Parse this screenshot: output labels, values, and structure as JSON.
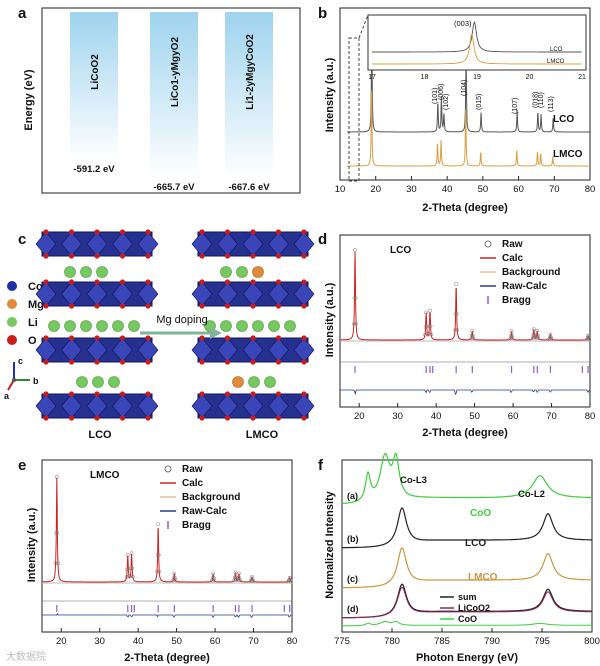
{
  "panel_labels": [
    "a",
    "b",
    "c",
    "d",
    "e",
    "f"
  ],
  "watermark": "大数据院",
  "chart_data": [
    {
      "id": "a",
      "type": "bar",
      "ylabel": "Energy (eV)",
      "categories": [
        "LiCoO2",
        "LiCo1-yMgyO2",
        "Li1-2yMgyCoO2"
      ],
      "values": [
        -591.2,
        -665.7,
        -667.6
      ],
      "value_labels": [
        "-591.2 eV",
        "-665.7 eV",
        "-667.6 eV"
      ],
      "ylim": [
        -700,
        -560
      ],
      "colors": [
        "#9fd3ee",
        "#ffffff"
      ]
    },
    {
      "id": "b",
      "type": "line",
      "title": "",
      "xlabel": "2-Theta (degree)",
      "ylabel": "Intensity (a.u.)",
      "xlim": [
        10,
        80
      ],
      "xticks": [
        10,
        20,
        30,
        40,
        50,
        60,
        70,
        80
      ],
      "series": [
        {
          "name": "LCO",
          "color": "#555555",
          "peaks": [
            [
              18.9,
              1.0
            ],
            [
              37.4,
              0.3
            ],
            [
              38.4,
              0.35
            ],
            [
              39.1,
              0.18
            ],
            [
              45.3,
              0.75
            ],
            [
              49.5,
              0.2
            ],
            [
              59.6,
              0.22
            ],
            [
              65.4,
              0.2
            ],
            [
              66.3,
              0.18
            ],
            [
              69.7,
              0.14
            ]
          ]
        },
        {
          "name": "LMCO",
          "color": "#d9a040",
          "peaks": [
            [
              18.85,
              1.0
            ],
            [
              37.3,
              0.28
            ],
            [
              38.3,
              0.33
            ],
            [
              45.2,
              0.7
            ],
            [
              49.4,
              0.18
            ],
            [
              59.5,
              0.2
            ],
            [
              65.3,
              0.18
            ],
            [
              66.2,
              0.16
            ],
            [
              69.6,
              0.12
            ]
          ]
        }
      ],
      "peak_labels": [
        "(101)",
        "(006)",
        "(102)",
        "(104)",
        "(015)",
        "(107)",
        "(018)",
        "(110)",
        "(113)"
      ],
      "series_labels": [
        "LCO",
        "LMCO"
      ],
      "inset": {
        "xlim": [
          17,
          21
        ],
        "xticks": [
          "17",
          "18",
          "19",
          "20",
          "21"
        ],
        "peak_label": "(003)",
        "series_labels": [
          "LCO",
          "LMCO"
        ],
        "peak_positions": {
          "LCO": 18.95,
          "LMCO": 18.9
        }
      }
    },
    {
      "id": "c",
      "type": "diagram",
      "legend": [
        {
          "name": "Co",
          "color": "#1f2fa8"
        },
        {
          "name": "Mg",
          "color": "#e08a3a"
        },
        {
          "name": "Li",
          "color": "#77c860"
        },
        {
          "name": "O",
          "color": "#cc1b1b"
        }
      ],
      "arrow_label": "Mg doping",
      "structure_labels": [
        "LCO",
        "LMCO"
      ],
      "axes_labels": [
        "c",
        "b",
        "a"
      ]
    },
    {
      "id": "d",
      "type": "line",
      "title": "LCO",
      "xlabel": "2-Theta (degree)",
      "ylabel": "Intensity (a.u.)",
      "xlim": [
        15,
        80
      ],
      "xticks": [
        20,
        30,
        40,
        50,
        60,
        70,
        80
      ],
      "legend": [
        "Raw",
        "Calc",
        "Background",
        "Raw-Calc",
        "Bragg"
      ],
      "peaks": [
        [
          18.9,
          1.0
        ],
        [
          37.4,
          0.3
        ],
        [
          38.4,
          0.32
        ],
        [
          45.2,
          0.62
        ],
        [
          49.4,
          0.1
        ],
        [
          59.6,
          0.1
        ],
        [
          65.4,
          0.12
        ],
        [
          66.3,
          0.1
        ],
        [
          69.7,
          0.06
        ],
        [
          79.5,
          0.05
        ]
      ],
      "bragg": [
        18.9,
        37.4,
        38.4,
        39.1,
        45.2,
        49.4,
        59.6,
        65.4,
        66.3,
        69.7,
        78.0,
        79.5
      ]
    },
    {
      "id": "e",
      "type": "line",
      "title": "LMCO",
      "xlabel": "2-Theta (degree)",
      "ylabel": "Intensity (a.u.)",
      "xlim": [
        15,
        80
      ],
      "xticks": [
        20,
        30,
        40,
        50,
        60,
        70,
        80
      ],
      "legend": [
        "Raw",
        "Calc",
        "Background",
        "Raw-Calc",
        "Bragg"
      ],
      "peaks": [
        [
          18.85,
          1.0
        ],
        [
          37.3,
          0.25
        ],
        [
          38.3,
          0.27
        ],
        [
          45.2,
          0.55
        ],
        [
          49.4,
          0.08
        ],
        [
          59.5,
          0.08
        ],
        [
          65.3,
          0.09
        ],
        [
          66.2,
          0.08
        ],
        [
          69.6,
          0.05
        ],
        [
          79.4,
          0.04
        ]
      ],
      "bragg": [
        18.85,
        37.3,
        38.3,
        39.0,
        45.2,
        49.4,
        59.5,
        65.3,
        66.2,
        69.6,
        78.0,
        79.4
      ]
    },
    {
      "id": "f",
      "type": "line",
      "title": "",
      "xlabel": "Photon Energy (eV)",
      "ylabel": "Normalized Intensity",
      "xlim": [
        775,
        800
      ],
      "xticks": [
        775,
        780,
        785,
        790,
        795,
        800
      ],
      "edge_labels": [
        "Co-L3",
        "Co-L2"
      ],
      "series": [
        {
          "name": "CoO",
          "tag": "(a)",
          "color": "#3ccf3c"
        },
        {
          "name": "LCO",
          "tag": "(b)",
          "color": "#222222"
        },
        {
          "name": "LMCO",
          "tag": "(c)",
          "color": "#cc9640"
        },
        {
          "name": "sum",
          "tag": "(d)",
          "color": "#222222"
        }
      ],
      "sub_legend": [
        "sum",
        "LiCoO2",
        "CoO"
      ],
      "sub_colors": [
        "#222222",
        "#8a2a55",
        "#3ccf3c"
      ]
    }
  ]
}
